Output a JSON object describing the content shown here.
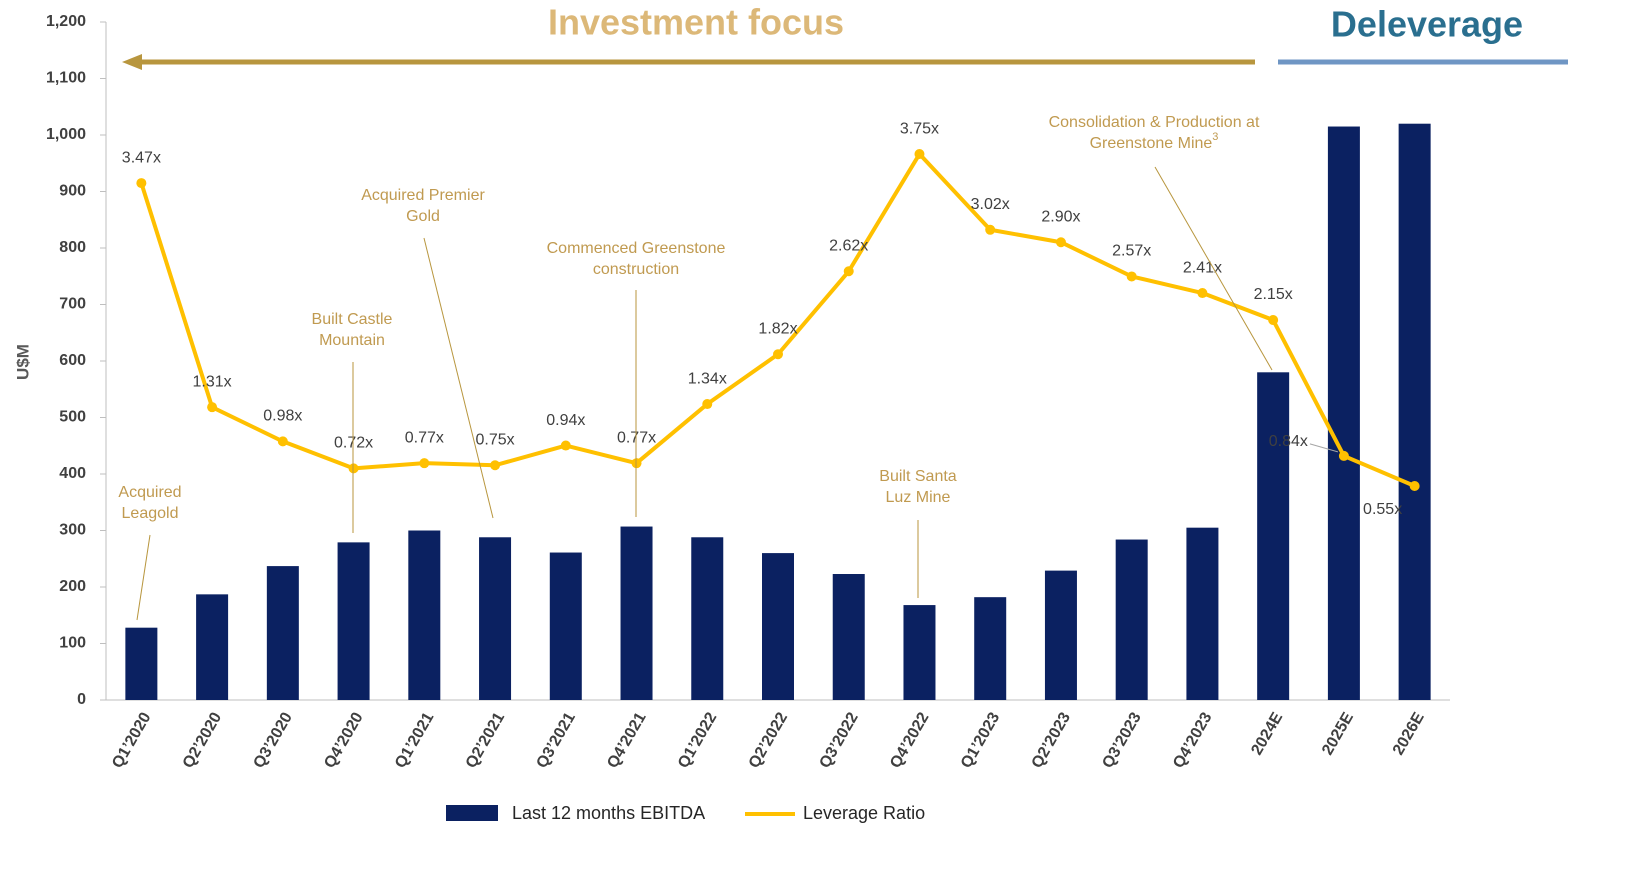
{
  "chart_data": {
    "type": "combo",
    "y_axis_label": "U$M",
    "categories": [
      "Q1’2020",
      "Q2’2020",
      "Q3’2020",
      "Q4’2020",
      "Q1’2021",
      "Q2’2021",
      "Q3’2021",
      "Q4’2021",
      "Q1’2022",
      "Q2’2022",
      "Q3’2022",
      "Q4’2022",
      "Q1’2023",
      "Q2’2023",
      "Q3’2023",
      "Q4’2023",
      "2024E",
      "2025E",
      "2026E"
    ],
    "ylim": [
      0,
      1200
    ],
    "yticks": [
      0,
      100,
      200,
      300,
      400,
      500,
      600,
      700,
      800,
      900,
      {
        "value": 1000,
        "label": "1,000"
      },
      {
        "value": 1100,
        "label": "1,100"
      },
      {
        "value": 1200,
        "label": "1,200"
      }
    ],
    "y2lim": [
      -1.513,
      5.023
    ],
    "series": [
      {
        "name": "Last 12 months EBITDA",
        "type": "bar",
        "color": "#0b2161",
        "values": [
          128,
          187,
          237,
          279,
          300,
          288,
          261,
          307,
          288,
          260,
          223,
          168,
          182,
          229,
          284,
          305,
          580,
          1015,
          1020
        ]
      },
      {
        "name": "Leverage Ratio",
        "type": "line",
        "axis": "y2",
        "color": "#ffc000",
        "values": [
          3.47,
          1.31,
          0.98,
          0.72,
          0.77,
          0.75,
          0.94,
          0.77,
          1.34,
          1.82,
          2.62,
          3.75,
          3.02,
          2.9,
          2.57,
          2.41,
          2.15,
          0.84,
          0.55
        ],
        "value_labels": [
          "3.47x",
          "1.31x",
          "0.98x",
          "0.72x",
          "0.77x",
          "0.75x",
          "0.94x",
          "0.77x",
          "1.34x",
          "1.82x",
          "2.62x",
          "3.75x",
          "3.02x",
          "2.90x",
          "2.57x",
          "2.41x",
          "2.15x",
          "0.84x",
          "0.55x"
        ]
      }
    ],
    "phases": [
      "Investment focus",
      "Deleverage"
    ],
    "annotations": [
      {
        "lines": [
          "Acquired",
          "Leagold"
        ]
      },
      {
        "lines": [
          "Built Castle",
          "Mountain"
        ]
      },
      {
        "lines": [
          "Acquired Premier",
          "Gold"
        ]
      },
      {
        "lines": [
          "Commenced Greenstone",
          "construction"
        ]
      },
      {
        "lines": [
          "Built Santa",
          "Luz Mine"
        ]
      },
      {
        "lines": [
          "Consolidation & Production at",
          "Greenstone Mine"
        ],
        "footnote": "3"
      }
    ]
  }
}
